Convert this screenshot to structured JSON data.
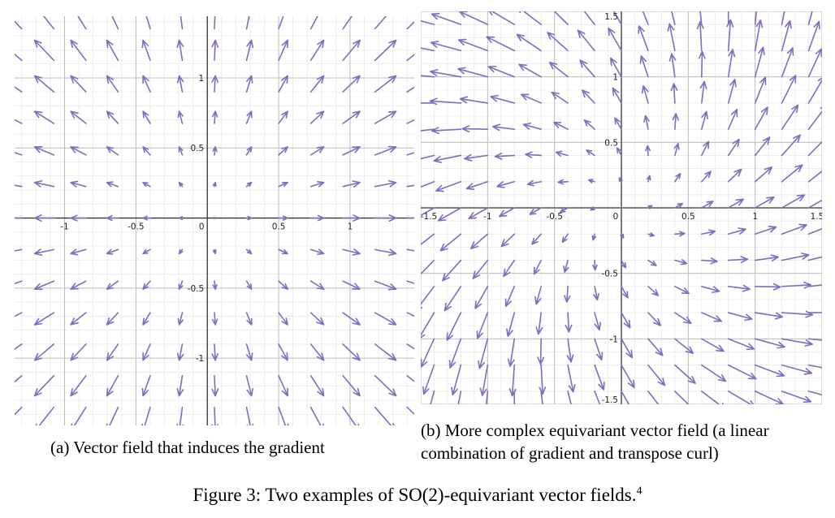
{
  "chart_data": [
    {
      "type": "quiver",
      "id": "panel_a",
      "xlim": [
        -1.35,
        1.45
      ],
      "ylim": [
        -1.48,
        1.44
      ],
      "x_ticks": [
        -1,
        -0.5,
        0,
        0.5,
        1
      ],
      "y_ticks": [
        1,
        0.5,
        -0.5,
        -1
      ],
      "x_tick_labels": [
        "-1",
        "-0.5",
        "0",
        "0.5",
        "1"
      ],
      "y_tick_labels": [
        "1",
        "0.5",
        "-0.5",
        "-1"
      ],
      "grid": true,
      "minor_grid_step": 0.1,
      "field": "gradient",
      "arrow_grid": {
        "x_from": -1.3,
        "x_to": 1.4,
        "x_step": 0.225,
        "y_from": -1.35,
        "y_to": 1.35,
        "y_step": 0.225
      },
      "arrow_color": "#7b6fbf"
    },
    {
      "type": "quiver",
      "id": "panel_b",
      "xlim": [
        -1.5,
        1.5
      ],
      "ylim": [
        -1.5,
        1.5
      ],
      "x_ticks": [
        -1.5,
        -1,
        -0.5,
        0,
        0.5,
        1,
        1.5
      ],
      "y_ticks": [
        1.5,
        1,
        0.5,
        -0.5,
        -1,
        -1.5
      ],
      "x_tick_labels": [
        "-1.5",
        "-1",
        "-0.5",
        "0",
        "0.5",
        "1",
        "1.5"
      ],
      "y_tick_labels": [
        "1.5",
        "1",
        "0.5",
        "-0.5",
        "-1",
        "-1.5"
      ],
      "grid": true,
      "minor_grid_step": 0.1,
      "field": "gradient_plus_transpose_curl",
      "arrow_grid": {
        "x_from": -1.4,
        "x_to": 1.4,
        "x_step": 0.2,
        "y_from": -1.4,
        "y_to": 1.4,
        "y_step": 0.2
      },
      "arrow_color": "#7b6fbf"
    }
  ],
  "captions": {
    "panel_a": "(a) Vector field that induces the gradient",
    "panel_b_line1": "(b) More complex equivariant vector field (a linear",
    "panel_b_line2": "combination of gradient and transpose curl)",
    "figure_prefix": "Figure 3: Two examples of ",
    "figure_math": "SO(2)",
    "figure_suffix": "-equivariant vector fields.",
    "footnote_mark": "4"
  }
}
